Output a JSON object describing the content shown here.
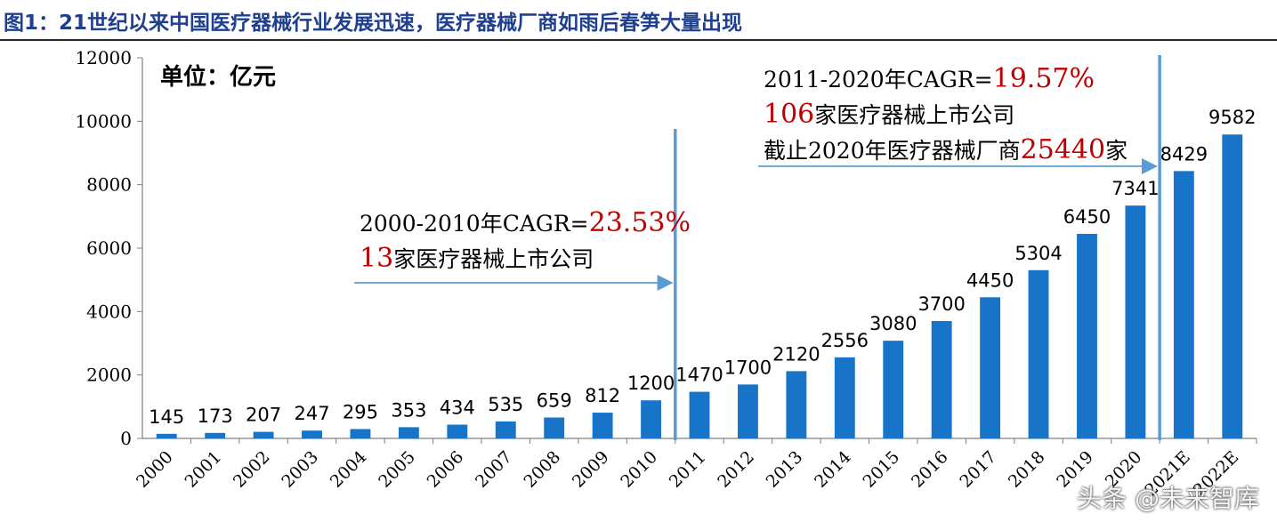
{
  "figure_title": "图1：21世纪以来中国医疗器械行业发展迅速，医疗器械厂商如雨后春笋大量出现",
  "watermark": "头条 @未来智库",
  "chart_data": {
    "type": "bar",
    "unit_label": "单位：亿元",
    "categories": [
      "2000",
      "2001",
      "2002",
      "2003",
      "2004",
      "2005",
      "2006",
      "2007",
      "2008",
      "2009",
      "2010",
      "2011",
      "2012",
      "2013",
      "2014",
      "2015",
      "2016",
      "2017",
      "2018",
      "2019",
      "2020",
      "2021E",
      "2022E"
    ],
    "values": [
      145,
      173,
      207,
      247,
      295,
      353,
      434,
      535,
      659,
      812,
      1200,
      1470,
      1700,
      2120,
      2556,
      3080,
      3700,
      4450,
      5304,
      6450,
      7341,
      8429,
      9582
    ],
    "ylim": [
      0,
      12000
    ],
    "yticks": [
      0,
      2000,
      4000,
      6000,
      8000,
      10000,
      12000
    ],
    "grid": false,
    "bar_color": "#1874c8",
    "annotation_color": "#5b9bd5",
    "highlight_color": "#c00000",
    "annotations": [
      {
        "lines": [
          [
            {
              "text": "2000-2010年CAGR=",
              "highlight": false
            },
            {
              "text": "23.53%",
              "highlight": true
            }
          ],
          [
            {
              "text": "13",
              "highlight": true
            },
            {
              "text": "家医疗器械上市公司",
              "highlight": false
            }
          ]
        ]
      },
      {
        "lines": [
          [
            {
              "text": "2011-2020年CAGR=",
              "highlight": false
            },
            {
              "text": "19.57%",
              "highlight": true
            }
          ],
          [
            {
              "text": "106",
              "highlight": true
            },
            {
              "text": "家医疗器械上市公司",
              "highlight": false
            }
          ],
          [
            {
              "text": "截止2020年医疗器械厂商",
              "highlight": false
            },
            {
              "text": "25440",
              "highlight": true
            },
            {
              "text": "家",
              "highlight": false
            }
          ]
        ]
      }
    ]
  }
}
